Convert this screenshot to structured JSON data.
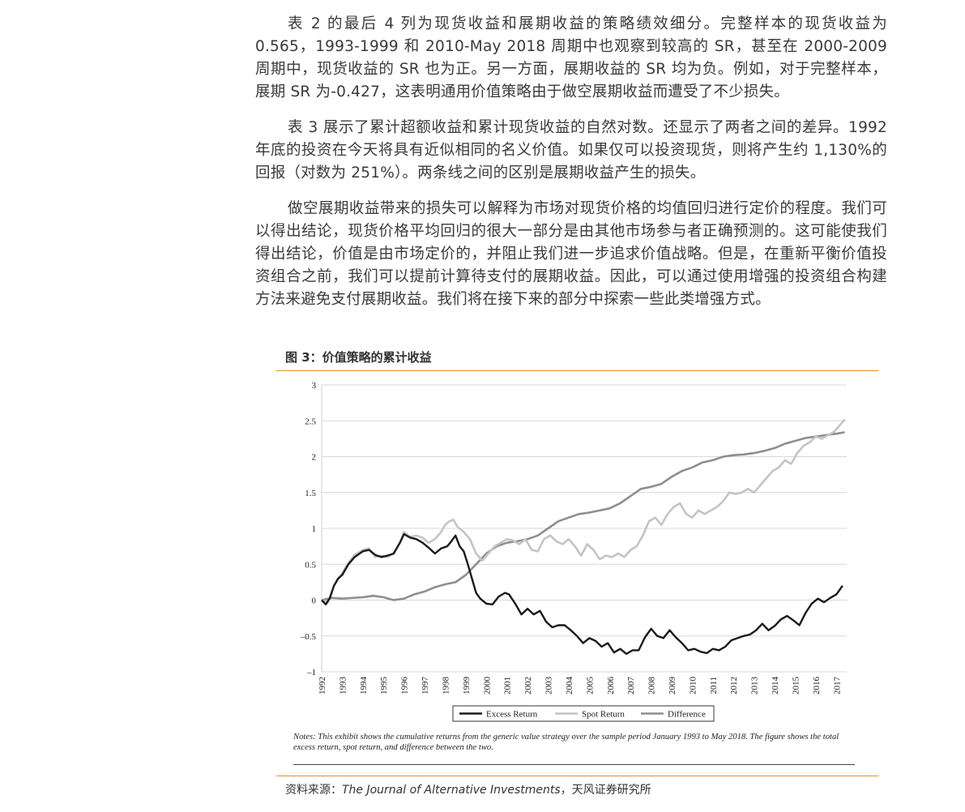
{
  "paragraphs": [
    "表 2 的最后 4 列为现货收益和展期收益的策略绩效细分。完整样本的现货收益为 0.565，1993-1999 和 2010-May 2018 周期中也观察到较高的 SR，甚至在 2000-2009 周期中，现货收益的 SR 也为正。另一方面，展期收益的 SR 均为负。例如，对于完整样本，展期 SR 为-0.427，这表明通用价值策略由于做空展期收益而遭受了不少损失。",
    "表 3 展示了累计超额收益和累计现货收益的自然对数。还显示了两者之间的差异。1992 年底的投资在今天将具有近似相同的名义价值。如果仅可以投资现货，则将产生约 1,130%的回报（对数为 251%）。两条线之间的区别是展期收益产生的损失。",
    "做空展期收益带来的损失可以解释为市场对现货价格的均值回归进行定价的程度。我们可以得出结论，现货价格平均回归的很大一部分是由其他市场参与者正确预测的。这可能使我们得出结论，价值是由市场定价的，并阻止我们进一步追求价值战略。但是，在重新平衡价值投资组合之前，我们可以提前计算待支付的展期收益。因此，可以通过使用增强的投资组合构建方法来避免支付展期收益。我们将在接下来的部分中探索一些此类增强方式。"
  ],
  "figure_title": "图 3：价值策略的累计收益",
  "notes": "Notes: This exhibit shows the cumulative returns from the generic value strategy over the sample period January 1993 to May 2018. The figure shows the total excess return, spot return, and difference between the two.",
  "source": {
    "prefix": "资料来源：",
    "journal": "The Journal of Alternative Investments",
    "suffix": "，天风证券研究所"
  },
  "colors": {
    "accent_rule": "#e8892b",
    "excess": "#1a1a1a",
    "spot": "#c4c4c4",
    "difference": "#8e8e8e",
    "grid": "#d8d8d8"
  },
  "chart_data": {
    "type": "line",
    "title": "",
    "xlabel": "",
    "ylabel": "",
    "xlim": [
      1992,
      2017.5
    ],
    "ylim": [
      -1,
      3
    ],
    "y_ticks": [
      3,
      2.5,
      2,
      1.5,
      1,
      0.5,
      0,
      -0.5,
      -1
    ],
    "y_tick_labels": [
      "3",
      "2.5",
      "2",
      "1.5",
      "1",
      "0.5",
      "0",
      "–0.5",
      "–1"
    ],
    "x_tick_labels": [
      "1992",
      "1993",
      "1994",
      "1995",
      "1996",
      "1997",
      "1998",
      "1999",
      "2000",
      "2001",
      "2002",
      "2003",
      "2004",
      "2005",
      "2006",
      "2007",
      "2008",
      "2009",
      "2010",
      "2011",
      "2012",
      "2013",
      "2014",
      "2015",
      "2016",
      "2017"
    ],
    "grid": "horizontal",
    "legend_position": "bottom",
    "series": [
      {
        "name": "Excess Return",
        "points": [
          [
            1992.0,
            0.0
          ],
          [
            1992.2,
            -0.06
          ],
          [
            1992.4,
            0.03
          ],
          [
            1992.6,
            0.2
          ],
          [
            1992.8,
            0.3
          ],
          [
            1993.0,
            0.35
          ],
          [
            1993.3,
            0.5
          ],
          [
            1993.6,
            0.6
          ],
          [
            1994.0,
            0.68
          ],
          [
            1994.3,
            0.7
          ],
          [
            1994.6,
            0.63
          ],
          [
            1994.9,
            0.6
          ],
          [
            1995.2,
            0.62
          ],
          [
            1995.5,
            0.65
          ],
          [
            1995.8,
            0.8
          ],
          [
            1996.0,
            0.92
          ],
          [
            1996.3,
            0.87
          ],
          [
            1996.6,
            0.85
          ],
          [
            1996.9,
            0.8
          ],
          [
            1997.2,
            0.73
          ],
          [
            1997.5,
            0.65
          ],
          [
            1997.8,
            0.72
          ],
          [
            1998.1,
            0.75
          ],
          [
            1998.3,
            0.82
          ],
          [
            1998.5,
            0.9
          ],
          [
            1998.7,
            0.75
          ],
          [
            1998.9,
            0.68
          ],
          [
            1999.1,
            0.5
          ],
          [
            1999.3,
            0.3
          ],
          [
            1999.5,
            0.1
          ],
          [
            1999.7,
            0.02
          ],
          [
            2000.0,
            -0.05
          ],
          [
            2000.3,
            -0.06
          ],
          [
            2000.6,
            0.05
          ],
          [
            2000.9,
            0.1
          ],
          [
            2001.1,
            0.08
          ],
          [
            2001.4,
            -0.05
          ],
          [
            2001.7,
            -0.2
          ],
          [
            2002.0,
            -0.12
          ],
          [
            2002.3,
            -0.2
          ],
          [
            2002.6,
            -0.15
          ],
          [
            2002.9,
            -0.3
          ],
          [
            2003.2,
            -0.38
          ],
          [
            2003.5,
            -0.35
          ],
          [
            2003.8,
            -0.35
          ],
          [
            2004.1,
            -0.42
          ],
          [
            2004.4,
            -0.5
          ],
          [
            2004.7,
            -0.6
          ],
          [
            2005.0,
            -0.53
          ],
          [
            2005.3,
            -0.57
          ],
          [
            2005.6,
            -0.65
          ],
          [
            2005.9,
            -0.6
          ],
          [
            2006.2,
            -0.73
          ],
          [
            2006.5,
            -0.68
          ],
          [
            2006.8,
            -0.75
          ],
          [
            2007.1,
            -0.7
          ],
          [
            2007.4,
            -0.7
          ],
          [
            2007.7,
            -0.52
          ],
          [
            2008.0,
            -0.4
          ],
          [
            2008.3,
            -0.5
          ],
          [
            2008.6,
            -0.53
          ],
          [
            2008.9,
            -0.42
          ],
          [
            2009.2,
            -0.52
          ],
          [
            2009.5,
            -0.6
          ],
          [
            2009.8,
            -0.7
          ],
          [
            2010.1,
            -0.68
          ],
          [
            2010.4,
            -0.72
          ],
          [
            2010.7,
            -0.74
          ],
          [
            2011.0,
            -0.68
          ],
          [
            2011.3,
            -0.7
          ],
          [
            2011.6,
            -0.65
          ],
          [
            2011.9,
            -0.56
          ],
          [
            2012.2,
            -0.53
          ],
          [
            2012.5,
            -0.5
          ],
          [
            2012.8,
            -0.48
          ],
          [
            2013.1,
            -0.42
          ],
          [
            2013.4,
            -0.33
          ],
          [
            2013.7,
            -0.42
          ],
          [
            2014.0,
            -0.36
          ],
          [
            2014.3,
            -0.27
          ],
          [
            2014.6,
            -0.22
          ],
          [
            2014.9,
            -0.28
          ],
          [
            2015.2,
            -0.35
          ],
          [
            2015.5,
            -0.18
          ],
          [
            2015.8,
            -0.05
          ],
          [
            2016.1,
            0.02
          ],
          [
            2016.4,
            -0.03
          ],
          [
            2016.7,
            0.03
          ],
          [
            2017.0,
            0.08
          ],
          [
            2017.3,
            0.2
          ]
        ]
      },
      {
        "name": "Spot Return",
        "points": [
          [
            1992.0,
            0.0
          ],
          [
            1992.3,
            -0.03
          ],
          [
            1992.6,
            0.2
          ],
          [
            1993.0,
            0.38
          ],
          [
            1993.3,
            0.52
          ],
          [
            1993.6,
            0.63
          ],
          [
            1994.0,
            0.7
          ],
          [
            1994.3,
            0.72
          ],
          [
            1994.6,
            0.6
          ],
          [
            1994.9,
            0.62
          ],
          [
            1995.2,
            0.6
          ],
          [
            1995.5,
            0.65
          ],
          [
            1995.8,
            0.8
          ],
          [
            1996.0,
            0.95
          ],
          [
            1996.3,
            0.88
          ],
          [
            1996.6,
            0.9
          ],
          [
            1996.9,
            0.87
          ],
          [
            1997.2,
            0.8
          ],
          [
            1997.5,
            0.85
          ],
          [
            1997.8,
            0.95
          ],
          [
            1998.0,
            1.05
          ],
          [
            1998.2,
            1.1
          ],
          [
            1998.4,
            1.12
          ],
          [
            1998.6,
            1.02
          ],
          [
            1998.9,
            0.95
          ],
          [
            1999.2,
            0.85
          ],
          [
            1999.5,
            0.65
          ],
          [
            1999.8,
            0.55
          ],
          [
            2000.1,
            0.65
          ],
          [
            2000.4,
            0.75
          ],
          [
            2000.7,
            0.8
          ],
          [
            2001.0,
            0.85
          ],
          [
            2001.3,
            0.83
          ],
          [
            2001.6,
            0.78
          ],
          [
            2001.9,
            0.85
          ],
          [
            2002.2,
            0.7
          ],
          [
            2002.5,
            0.68
          ],
          [
            2002.8,
            0.85
          ],
          [
            2003.1,
            0.9
          ],
          [
            2003.4,
            0.82
          ],
          [
            2003.7,
            0.78
          ],
          [
            2004.0,
            0.85
          ],
          [
            2004.3,
            0.75
          ],
          [
            2004.6,
            0.62
          ],
          [
            2004.9,
            0.78
          ],
          [
            2005.2,
            0.7
          ],
          [
            2005.5,
            0.57
          ],
          [
            2005.8,
            0.62
          ],
          [
            2006.1,
            0.6
          ],
          [
            2006.4,
            0.65
          ],
          [
            2006.7,
            0.6
          ],
          [
            2007.0,
            0.7
          ],
          [
            2007.3,
            0.75
          ],
          [
            2007.6,
            0.9
          ],
          [
            2007.9,
            1.1
          ],
          [
            2008.2,
            1.15
          ],
          [
            2008.5,
            1.05
          ],
          [
            2008.8,
            1.2
          ],
          [
            2009.1,
            1.3
          ],
          [
            2009.4,
            1.35
          ],
          [
            2009.7,
            1.2
          ],
          [
            2010.0,
            1.15
          ],
          [
            2010.3,
            1.25
          ],
          [
            2010.6,
            1.2
          ],
          [
            2010.9,
            1.25
          ],
          [
            2011.2,
            1.3
          ],
          [
            2011.5,
            1.38
          ],
          [
            2011.8,
            1.5
          ],
          [
            2012.1,
            1.48
          ],
          [
            2012.4,
            1.5
          ],
          [
            2012.7,
            1.55
          ],
          [
            2013.0,
            1.5
          ],
          [
            2013.3,
            1.6
          ],
          [
            2013.6,
            1.7
          ],
          [
            2013.9,
            1.8
          ],
          [
            2014.2,
            1.85
          ],
          [
            2014.5,
            1.95
          ],
          [
            2014.8,
            1.9
          ],
          [
            2015.1,
            2.05
          ],
          [
            2015.4,
            2.15
          ],
          [
            2015.7,
            2.2
          ],
          [
            2016.0,
            2.28
          ],
          [
            2016.3,
            2.25
          ],
          [
            2016.6,
            2.3
          ],
          [
            2016.9,
            2.35
          ],
          [
            2017.2,
            2.45
          ],
          [
            2017.4,
            2.52
          ]
        ]
      },
      {
        "name": "Difference",
        "points": [
          [
            1992.0,
            0.0
          ],
          [
            1992.5,
            0.03
          ],
          [
            1993.0,
            0.02
          ],
          [
            1993.5,
            0.03
          ],
          [
            1994.0,
            0.04
          ],
          [
            1994.5,
            0.06
          ],
          [
            1995.0,
            0.04
          ],
          [
            1995.5,
            0.0
          ],
          [
            1996.0,
            0.02
          ],
          [
            1996.5,
            0.08
          ],
          [
            1997.0,
            0.12
          ],
          [
            1997.5,
            0.18
          ],
          [
            1998.0,
            0.22
          ],
          [
            1998.5,
            0.25
          ],
          [
            1999.0,
            0.35
          ],
          [
            1999.5,
            0.5
          ],
          [
            2000.0,
            0.65
          ],
          [
            2000.5,
            0.75
          ],
          [
            2001.0,
            0.8
          ],
          [
            2001.5,
            0.82
          ],
          [
            2002.0,
            0.85
          ],
          [
            2002.5,
            0.9
          ],
          [
            2003.0,
            1.0
          ],
          [
            2003.5,
            1.1
          ],
          [
            2004.0,
            1.15
          ],
          [
            2004.5,
            1.2
          ],
          [
            2005.0,
            1.22
          ],
          [
            2005.5,
            1.25
          ],
          [
            2006.0,
            1.28
          ],
          [
            2006.5,
            1.35
          ],
          [
            2007.0,
            1.45
          ],
          [
            2007.5,
            1.55
          ],
          [
            2008.0,
            1.58
          ],
          [
            2008.5,
            1.62
          ],
          [
            2009.0,
            1.72
          ],
          [
            2009.5,
            1.8
          ],
          [
            2010.0,
            1.85
          ],
          [
            2010.5,
            1.92
          ],
          [
            2011.0,
            1.95
          ],
          [
            2011.5,
            2.0
          ],
          [
            2012.0,
            2.02
          ],
          [
            2012.5,
            2.03
          ],
          [
            2013.0,
            2.05
          ],
          [
            2013.5,
            2.08
          ],
          [
            2014.0,
            2.12
          ],
          [
            2014.5,
            2.18
          ],
          [
            2015.0,
            2.22
          ],
          [
            2015.5,
            2.26
          ],
          [
            2016.0,
            2.28
          ],
          [
            2016.5,
            2.3
          ],
          [
            2017.0,
            2.32
          ],
          [
            2017.4,
            2.34
          ]
        ]
      }
    ]
  }
}
